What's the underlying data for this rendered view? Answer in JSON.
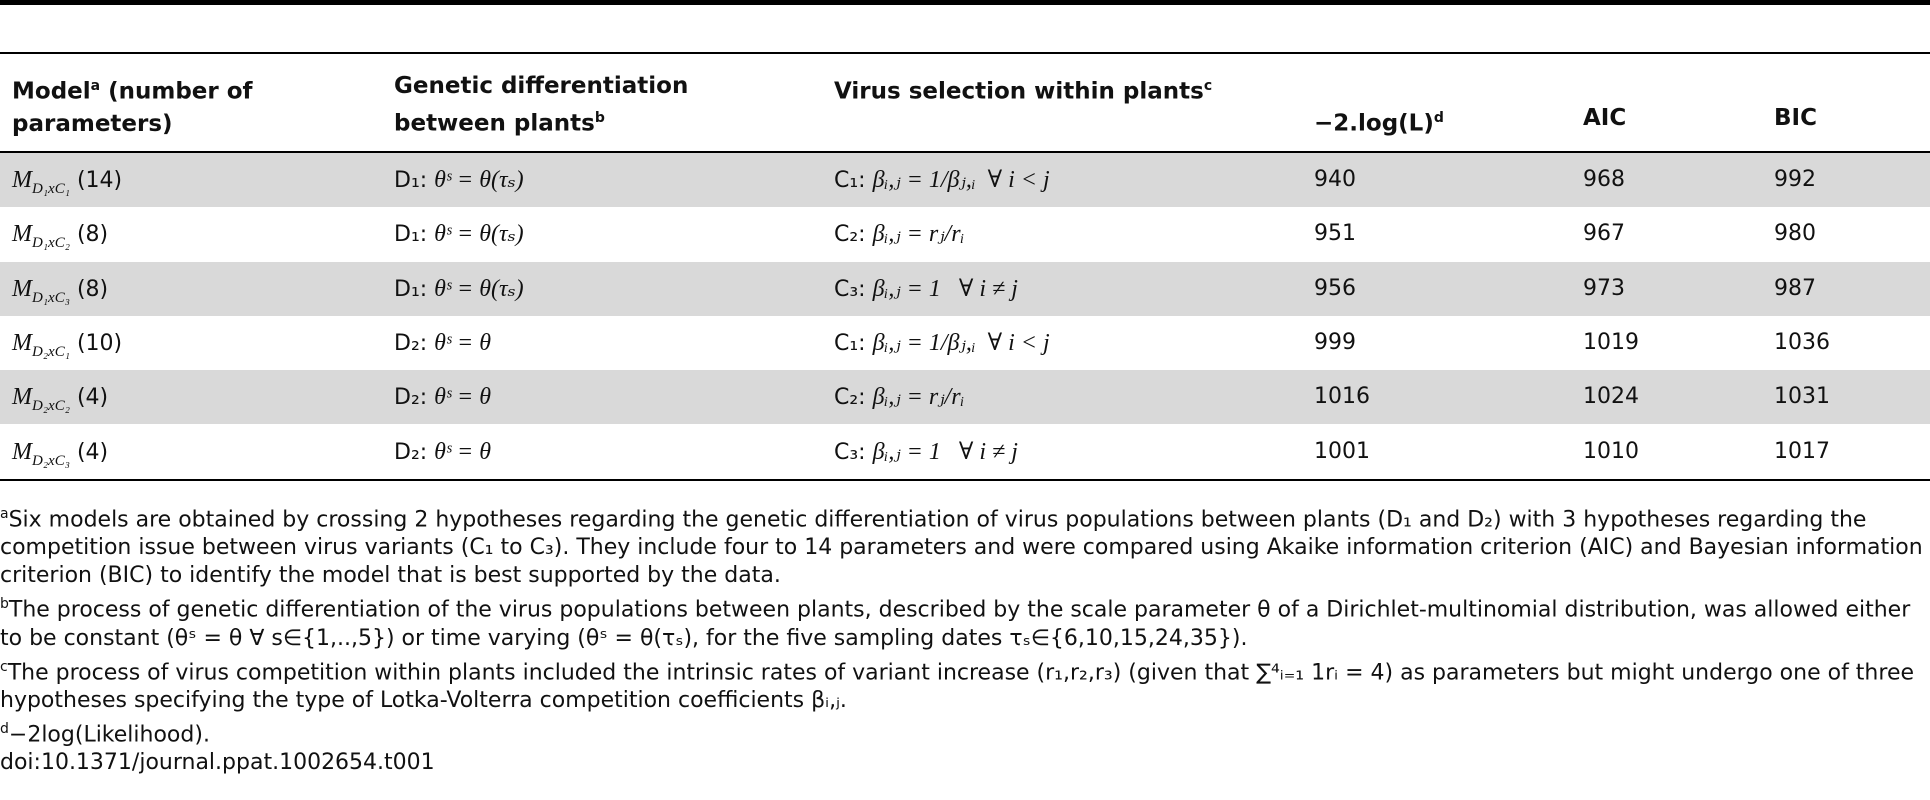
{
  "table": {
    "header": [
      {
        "text": "Model",
        "sup": "a",
        "rest": " (number of parameters)"
      },
      {
        "text": "Genetic differentiation between plants",
        "sup": "b"
      },
      {
        "text": "Virus selection within plants",
        "sup": "c"
      },
      {
        "text": "−2.log(L)",
        "sup": "d"
      },
      {
        "text": "AIC"
      },
      {
        "text": "BIC"
      }
    ],
    "rows": [
      [
        {
          "symbol": "M",
          "subscript": "D₁xC₁",
          "params": "(14)"
        },
        {
          "label": "D₁:",
          "formula": "θˢ = θ(τₛ)"
        },
        {
          "label": "C₁:",
          "formula": "βᵢ,ⱼ = 1/βⱼ,ᵢ  ∀ i < j"
        },
        940,
        968,
        992
      ],
      [
        {
          "symbol": "M",
          "subscript": "D₁xC₂",
          "params": "(8)"
        },
        {
          "label": "D₁:",
          "formula": "θˢ = θ(τₛ)"
        },
        {
          "label": "C₂:",
          "formula": "βᵢ,ⱼ = rⱼ/rᵢ"
        },
        951,
        967,
        980
      ],
      [
        {
          "symbol": "M",
          "subscript": "D₁xC₃",
          "params": "(8)"
        },
        {
          "label": "D₁:",
          "formula": "θˢ = θ(τₛ)"
        },
        {
          "label": "C₃:",
          "formula": "βᵢ,ⱼ = 1   ∀ i ≠ j"
        },
        956,
        973,
        987
      ],
      [
        {
          "symbol": "M",
          "subscript": "D₂xC₁",
          "params": "(10)"
        },
        {
          "label": "D₂:",
          "formula": "θˢ = θ"
        },
        {
          "label": "C₁:",
          "formula": "βᵢ,ⱼ = 1/βⱼ,ᵢ  ∀ i < j"
        },
        999,
        1019,
        1036
      ],
      [
        {
          "symbol": "M",
          "subscript": "D₂xC₂",
          "params": "(4)"
        },
        {
          "label": "D₂:",
          "formula": "θˢ = θ"
        },
        {
          "label": "C₂:",
          "formula": "βᵢ,ⱼ = rⱼ/rᵢ"
        },
        1016,
        1024,
        1031
      ],
      [
        {
          "symbol": "M",
          "subscript": "D₂xC₃",
          "params": "(4)"
        },
        {
          "label": "D₂:",
          "formula": "θˢ = θ"
        },
        {
          "label": "C₃:",
          "formula": "βᵢ,ⱼ = 1   ∀ i ≠ j"
        },
        1001,
        1010,
        1017
      ]
    ]
  },
  "footnotes": [
    {
      "mark": "a",
      "text": "Six models are obtained by crossing 2 hypotheses regarding the genetic differentiation of virus populations between plants (D₁ and D₂) with 3 hypotheses regarding the competition issue between virus variants (C₁ to C₃). They include four to 14 parameters and were compared using Akaike information criterion (AIC) and Bayesian information criterion (BIC) to identify the model that is best supported by the data."
    },
    {
      "mark": "b",
      "text": "The process of genetic differentiation of the virus populations between plants, described by the scale parameter θ of a Dirichlet-multinomial distribution, was allowed either to be constant (θˢ = θ ∀ s∈{1,..,5}) or time varying (θˢ = θ(τₛ), for the five sampling dates τₛ∈{6,10,15,24,35})."
    },
    {
      "mark": "c",
      "text": "The process of virus competition within plants included the intrinsic rates of variant increase (r₁,r₂,r₃) (given that ∑⁴ᵢ₌₁ 1rᵢ = 4) as parameters but might undergo one of three hypotheses specifying the type of Lotka-Volterra competition coefficients βᵢ,ⱼ."
    },
    {
      "mark": "d",
      "text": "−2log(Likelihood)."
    }
  ],
  "doi": "doi:10.1371/journal.ppat.1002654.t001"
}
